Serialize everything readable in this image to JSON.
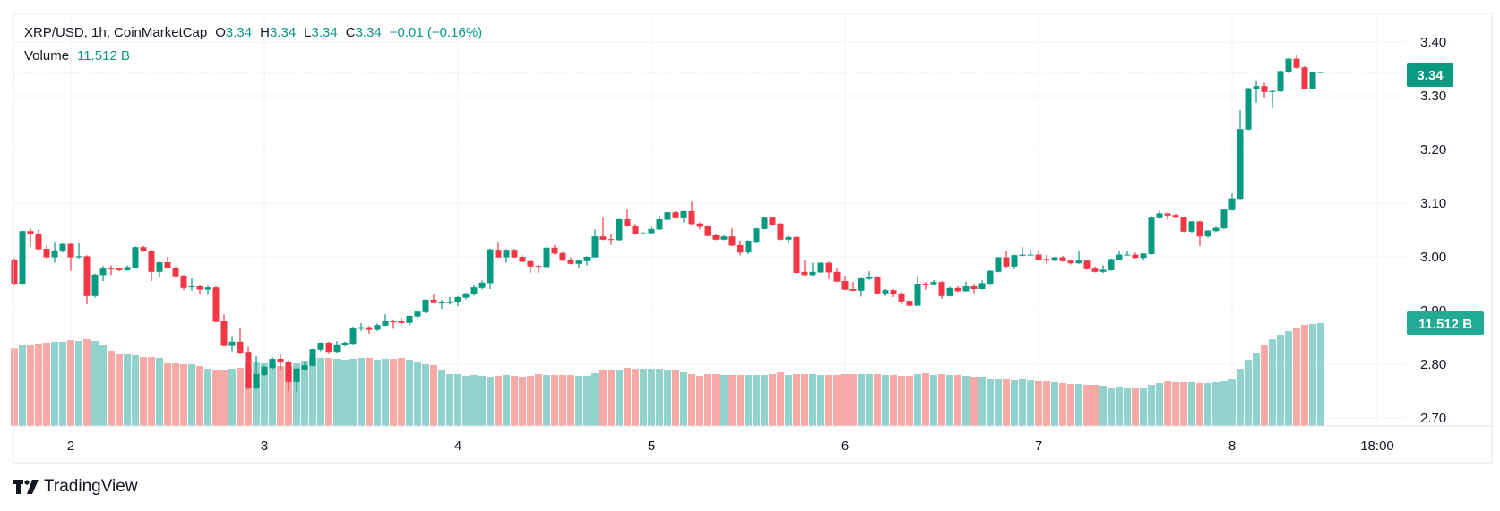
{
  "header": {
    "symbol": "XRP/USD, 1h, CoinMarketCap",
    "open_label": "O",
    "open": "3.34",
    "high_label": "H",
    "high": "3.34",
    "low_label": "L",
    "low": "3.34",
    "close_label": "C",
    "close": "3.34",
    "change": "−0.01 (−0.16%)",
    "volume_label": "Volume",
    "volume": "11.512 B"
  },
  "badges": {
    "price": "3.34",
    "volume": "11.512 B"
  },
  "branding": {
    "name": "TradingView"
  },
  "colors": {
    "up": "#089981",
    "down": "#f23645",
    "volume_up": "#92d2cc",
    "volume_down": "#f7a9a7",
    "grid": "#f0f3fa",
    "text": "#131722"
  },
  "chart_data": {
    "type": "candlestick",
    "interval": "1h",
    "ylim": [
      2.7,
      3.4
    ],
    "y_ticks": [
      "2.70",
      "2.80",
      "2.90",
      "3.00",
      "3.10",
      "3.20",
      "3.30",
      "3.40"
    ],
    "x_ticks": [
      {
        "label": "2",
        "candle": 7
      },
      {
        "label": "3",
        "candle": 31
      },
      {
        "label": "4",
        "candle": 55
      },
      {
        "label": "5",
        "candle": 79
      },
      {
        "label": "6",
        "candle": 103
      },
      {
        "label": "7",
        "candle": 127
      },
      {
        "label": "8",
        "candle": 151
      },
      {
        "label": "18:00",
        "candle": 169
      }
    ],
    "grid": true,
    "last_price": 3.344,
    "volume_unit": "B",
    "candle_fields": [
      "open",
      "high",
      "low",
      "close",
      "volume"
    ],
    "candles": [
      [
        2.994,
        2.997,
        2.948,
        2.95,
        8.67
      ],
      [
        2.95,
        3.049,
        2.946,
        3.048,
        9.1
      ],
      [
        3.048,
        3.053,
        3.019,
        3.042,
        9.0
      ],
      [
        3.043,
        3.05,
        3.012,
        3.014,
        9.2
      ],
      [
        3.015,
        3.021,
        2.996,
        2.999,
        9.3
      ],
      [
        2.999,
        3.028,
        2.989,
        3.012,
        9.4
      ],
      [
        3.011,
        3.026,
        3.008,
        3.024,
        9.4
      ],
      [
        3.024,
        3.026,
        2.974,
        2.999,
        9.6
      ],
      [
        2.999,
        3.027,
        2.997,
        3.001,
        9.5
      ],
      [
        3.001,
        3.003,
        2.912,
        2.927,
        9.7
      ],
      [
        2.927,
        2.969,
        2.924,
        2.967,
        9.5
      ],
      [
        2.966,
        2.983,
        2.955,
        2.978,
        9.0
      ],
      [
        2.978,
        2.984,
        2.966,
        2.977,
        8.4
      ],
      [
        2.978,
        2.98,
        2.973,
        2.975,
        8.0
      ],
      [
        2.975,
        2.984,
        2.974,
        2.981,
        8.0
      ],
      [
        2.98,
        3.019,
        2.979,
        3.018,
        7.9
      ],
      [
        3.018,
        3.02,
        3.009,
        3.01,
        7.7
      ],
      [
        3.011,
        3.013,
        2.955,
        2.972,
        7.7
      ],
      [
        2.972,
        2.991,
        2.962,
        2.99,
        7.6
      ],
      [
        2.99,
        3.0,
        2.978,
        2.979,
        7.0
      ],
      [
        2.98,
        2.982,
        2.961,
        2.964,
        7.0
      ],
      [
        2.965,
        2.967,
        2.938,
        2.942,
        6.9
      ],
      [
        2.944,
        2.96,
        2.937,
        2.945,
        6.9
      ],
      [
        2.945,
        2.947,
        2.93,
        2.939,
        6.7
      ],
      [
        2.939,
        2.946,
        2.929,
        2.943,
        6.4
      ],
      [
        2.943,
        2.945,
        2.878,
        2.879,
        6.2
      ],
      [
        2.88,
        2.893,
        2.833,
        2.834,
        6.3
      ],
      [
        2.834,
        2.851,
        2.824,
        2.842,
        6.4
      ],
      [
        2.842,
        2.867,
        2.818,
        2.82,
        6.5
      ],
      [
        2.823,
        2.832,
        2.753,
        2.755,
        6.9
      ],
      [
        2.755,
        2.815,
        2.753,
        2.782,
        7.1
      ],
      [
        2.78,
        2.798,
        2.778,
        2.795,
        7.0
      ],
      [
        2.793,
        2.813,
        2.79,
        2.81,
        6.9
      ],
      [
        2.81,
        2.818,
        2.788,
        2.803,
        6.7
      ],
      [
        2.805,
        2.807,
        2.75,
        2.767,
        6.7
      ],
      [
        2.767,
        2.793,
        2.748,
        2.792,
        7.0
      ],
      [
        2.79,
        2.804,
        2.788,
        2.798,
        7.3
      ],
      [
        2.797,
        2.829,
        2.796,
        2.828,
        7.6
      ],
      [
        2.827,
        2.841,
        2.824,
        2.84,
        7.6
      ],
      [
        2.84,
        2.842,
        2.819,
        2.823,
        7.6
      ],
      [
        2.823,
        2.843,
        2.821,
        2.837,
        7.5
      ],
      [
        2.835,
        2.842,
        2.833,
        2.84,
        7.4
      ],
      [
        2.838,
        2.87,
        2.837,
        2.867,
        7.5
      ],
      [
        2.866,
        2.877,
        2.862,
        2.869,
        7.6
      ],
      [
        2.869,
        2.871,
        2.857,
        2.864,
        7.6
      ],
      [
        2.864,
        2.876,
        2.862,
        2.873,
        7.4
      ],
      [
        2.872,
        2.893,
        2.871,
        2.88,
        7.5
      ],
      [
        2.88,
        2.882,
        2.866,
        2.879,
        7.5
      ],
      [
        2.88,
        2.886,
        2.874,
        2.877,
        7.6
      ],
      [
        2.877,
        2.892,
        2.872,
        2.89,
        7.4
      ],
      [
        2.889,
        2.9,
        2.886,
        2.898,
        7.1
      ],
      [
        2.897,
        2.921,
        2.895,
        2.92,
        6.9
      ],
      [
        2.92,
        2.931,
        2.913,
        2.914,
        6.8
      ],
      [
        2.915,
        2.92,
        2.903,
        2.915,
        6.2
      ],
      [
        2.914,
        2.925,
        2.911,
        2.917,
        5.8
      ],
      [
        2.916,
        2.927,
        2.908,
        2.925,
        5.8
      ],
      [
        2.924,
        2.934,
        2.921,
        2.932,
        5.6
      ],
      [
        2.93,
        2.947,
        2.928,
        2.943,
        5.7
      ],
      [
        2.942,
        2.956,
        2.939,
        2.952,
        5.6
      ],
      [
        2.951,
        3.015,
        2.94,
        3.014,
        5.5
      ],
      [
        3.013,
        3.028,
        2.998,
        2.999,
        5.6
      ],
      [
        2.999,
        3.014,
        2.989,
        3.013,
        5.7
      ],
      [
        3.013,
        3.015,
        2.998,
        2.999,
        5.6
      ],
      [
        3.0,
        3.003,
        2.989,
        2.991,
        5.5
      ],
      [
        2.992,
        2.993,
        2.97,
        2.982,
        5.6
      ],
      [
        2.983,
        2.985,
        2.97,
        2.982,
        5.8
      ],
      [
        2.981,
        3.018,
        2.98,
        3.017,
        5.7
      ],
      [
        3.017,
        3.022,
        3.004,
        3.006,
        5.7
      ],
      [
        3.007,
        3.009,
        2.992,
        2.993,
        5.7
      ],
      [
        2.995,
        2.999,
        2.986,
        2.987,
        5.7
      ],
      [
        2.987,
        2.995,
        2.98,
        2.993,
        5.6
      ],
      [
        2.992,
        3.001,
        2.984,
        3.0,
        5.6
      ],
      [
        2.999,
        3.051,
        2.998,
        3.038,
        5.9
      ],
      [
        3.038,
        3.073,
        3.031,
        3.032,
        6.2
      ],
      [
        3.033,
        3.042,
        3.022,
        3.032,
        6.3
      ],
      [
        3.031,
        3.071,
        3.03,
        3.07,
        6.3
      ],
      [
        3.07,
        3.088,
        3.056,
        3.057,
        6.5
      ],
      [
        3.058,
        3.061,
        3.041,
        3.042,
        6.4
      ],
      [
        3.044,
        3.046,
        3.042,
        3.044,
        6.4
      ],
      [
        3.044,
        3.058,
        3.043,
        3.052,
        6.4
      ],
      [
        3.051,
        3.077,
        3.05,
        3.07,
        6.4
      ],
      [
        3.069,
        3.084,
        3.068,
        3.083,
        6.3
      ],
      [
        3.083,
        3.085,
        3.071,
        3.072,
        6.2
      ],
      [
        3.072,
        3.086,
        3.064,
        3.085,
        6.0
      ],
      [
        3.085,
        3.103,
        3.06,
        3.061,
        5.8
      ],
      [
        3.062,
        3.064,
        3.051,
        3.056,
        5.6
      ],
      [
        3.057,
        3.059,
        3.038,
        3.039,
        5.8
      ],
      [
        3.04,
        3.043,
        3.031,
        3.032,
        5.8
      ],
      [
        3.032,
        3.04,
        3.031,
        3.038,
        5.7
      ],
      [
        3.038,
        3.053,
        3.02,
        3.021,
        5.7
      ],
      [
        3.022,
        3.03,
        3.003,
        3.008,
        5.7
      ],
      [
        3.008,
        3.031,
        3.005,
        3.03,
        5.7
      ],
      [
        3.028,
        3.054,
        3.027,
        3.053,
        5.7
      ],
      [
        3.052,
        3.075,
        3.051,
        3.073,
        5.7
      ],
      [
        3.073,
        3.075,
        3.059,
        3.06,
        5.8
      ],
      [
        3.062,
        3.064,
        3.03,
        3.032,
        6.0
      ],
      [
        3.032,
        3.04,
        3.027,
        3.037,
        5.7
      ],
      [
        3.037,
        3.038,
        2.969,
        2.97,
        5.8
      ],
      [
        2.972,
        2.993,
        2.965,
        2.966,
        5.8
      ],
      [
        2.966,
        2.989,
        2.965,
        2.972,
        5.8
      ],
      [
        2.971,
        2.99,
        2.97,
        2.989,
        5.7
      ],
      [
        2.989,
        2.991,
        2.959,
        2.971,
        5.7
      ],
      [
        2.972,
        2.98,
        2.953,
        2.954,
        5.7
      ],
      [
        2.955,
        2.965,
        2.938,
        2.939,
        5.8
      ],
      [
        2.94,
        2.953,
        2.936,
        2.937,
        5.8
      ],
      [
        2.937,
        2.961,
        2.926,
        2.96,
        5.8
      ],
      [
        2.959,
        2.973,
        2.957,
        2.963,
        5.8
      ],
      [
        2.963,
        2.964,
        2.931,
        2.932,
        5.8
      ],
      [
        2.932,
        2.94,
        2.927,
        2.938,
        5.7
      ],
      [
        2.938,
        2.94,
        2.925,
        2.93,
        5.7
      ],
      [
        2.932,
        2.935,
        2.911,
        2.917,
        5.6
      ],
      [
        2.918,
        2.919,
        2.908,
        2.909,
        5.6
      ],
      [
        2.909,
        2.964,
        2.908,
        2.95,
        5.8
      ],
      [
        2.95,
        2.953,
        2.939,
        2.949,
        5.9
      ],
      [
        2.949,
        2.957,
        2.947,
        2.953,
        5.7
      ],
      [
        2.953,
        2.955,
        2.922,
        2.927,
        5.8
      ],
      [
        2.927,
        2.944,
        2.926,
        2.942,
        5.7
      ],
      [
        2.942,
        2.945,
        2.934,
        2.936,
        5.7
      ],
      [
        2.936,
        2.954,
        2.935,
        2.945,
        5.6
      ],
      [
        2.945,
        2.95,
        2.932,
        2.94,
        5.5
      ],
      [
        2.94,
        2.956,
        2.939,
        2.951,
        5.5
      ],
      [
        2.95,
        2.975,
        2.947,
        2.974,
        5.2
      ],
      [
        2.972,
        3.0,
        2.971,
        2.999,
        5.2
      ],
      [
        2.999,
        3.011,
        2.98,
        2.982,
        5.2
      ],
      [
        2.982,
        3.004,
        2.977,
        3.003,
        5.1
      ],
      [
        3.002,
        3.018,
        3.001,
        3.004,
        5.2
      ],
      [
        3.004,
        3.014,
        3.003,
        3.004,
        5.1
      ],
      [
        3.004,
        3.011,
        2.994,
        2.995,
        5.0
      ],
      [
        2.996,
        3.004,
        2.988,
        2.993,
        5.0
      ],
      [
        2.993,
        3.0,
        2.992,
        2.999,
        4.9
      ],
      [
        2.999,
        3.002,
        2.991,
        2.992,
        4.8
      ],
      [
        2.993,
        2.995,
        2.986,
        2.988,
        4.7
      ],
      [
        2.988,
        3.01,
        2.987,
        2.993,
        4.7
      ],
      [
        2.993,
        2.994,
        2.976,
        2.977,
        4.6
      ],
      [
        2.978,
        2.982,
        2.971,
        2.972,
        4.6
      ],
      [
        2.972,
        2.984,
        2.97,
        2.976,
        4.5
      ],
      [
        2.975,
        2.997,
        2.974,
        2.996,
        4.3
      ],
      [
        2.995,
        3.01,
        2.994,
        3.004,
        4.4
      ],
      [
        3.004,
        3.011,
        3.003,
        3.004,
        4.3
      ],
      [
        3.004,
        3.008,
        2.997,
        2.998,
        4.3
      ],
      [
        2.998,
        3.007,
        2.993,
        3.006,
        4.2
      ],
      [
        3.005,
        3.076,
        3.004,
        3.073,
        4.6
      ],
      [
        3.072,
        3.086,
        3.071,
        3.081,
        4.8
      ],
      [
        3.081,
        3.083,
        3.069,
        3.077,
        5.0
      ],
      [
        3.078,
        3.08,
        3.072,
        3.073,
        4.9
      ],
      [
        3.074,
        3.075,
        3.046,
        3.047,
        4.9
      ],
      [
        3.047,
        3.067,
        3.045,
        3.066,
        4.9
      ],
      [
        3.066,
        3.067,
        3.02,
        3.038,
        4.8
      ],
      [
        3.038,
        3.05,
        3.036,
        3.049,
        4.8
      ],
      [
        3.048,
        3.056,
        3.046,
        3.054,
        4.9
      ],
      [
        3.053,
        3.089,
        3.052,
        3.088,
        5.0
      ],
      [
        3.087,
        3.118,
        3.086,
        3.109,
        5.3
      ],
      [
        3.108,
        3.273,
        3.107,
        3.238,
        6.4
      ],
      [
        3.237,
        3.315,
        3.236,
        3.314,
        7.4
      ],
      [
        3.313,
        3.329,
        3.287,
        3.318,
        8.1
      ],
      [
        3.318,
        3.324,
        3.297,
        3.307,
        9.1
      ],
      [
        3.307,
        3.31,
        3.277,
        3.309,
        9.7
      ],
      [
        3.308,
        3.347,
        3.307,
        3.346,
        10.2
      ],
      [
        3.345,
        3.37,
        3.342,
        3.369,
        10.6
      ],
      [
        3.369,
        3.376,
        3.35,
        3.352,
        11.0
      ],
      [
        3.353,
        3.355,
        3.313,
        3.313,
        11.3
      ],
      [
        3.313,
        3.345,
        3.312,
        3.344,
        11.4
      ],
      [
        3.344,
        3.344,
        3.344,
        3.344,
        11.512
      ]
    ]
  }
}
